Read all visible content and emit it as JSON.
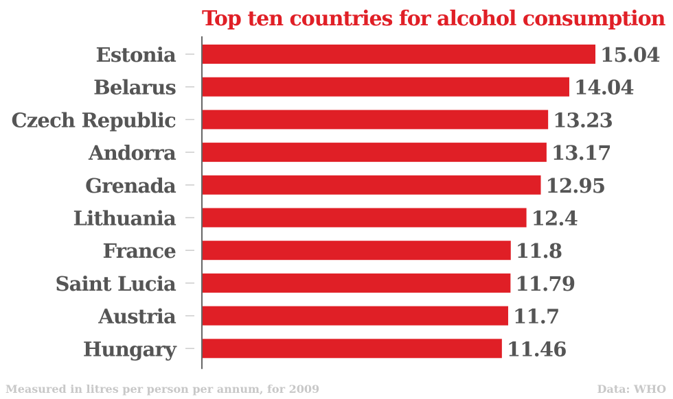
{
  "chart_data": {
    "type": "bar",
    "orientation": "horizontal",
    "title": "Top ten countries for alcohol consumption",
    "categories": [
      "Estonia",
      "Belarus",
      "Czech Republic",
      "Andorra",
      "Grenada",
      "Lithuania",
      "France",
      "Saint Lucia",
      "Austria",
      "Hungary"
    ],
    "values": [
      15.04,
      14.04,
      13.23,
      13.17,
      12.95,
      12.4,
      11.8,
      11.79,
      11.7,
      11.46
    ],
    "value_labels": [
      "15.04",
      "14.04",
      "13.23",
      "13.17",
      "12.95",
      "12.4",
      "11.8",
      "11.79",
      "11.7",
      "11.46"
    ],
    "xlim": [
      0,
      15.04
    ],
    "grid": false,
    "legend": "none",
    "colors": {
      "bar": "#e01f26",
      "title": "#e01f26",
      "category_label": "#555555",
      "value_label": "#555555",
      "footnote": "#c8c8c8",
      "axis": "#333333"
    }
  },
  "footer": {
    "note": "Measured in litres per person per annum, for 2009",
    "source": "Data: WHO"
  }
}
